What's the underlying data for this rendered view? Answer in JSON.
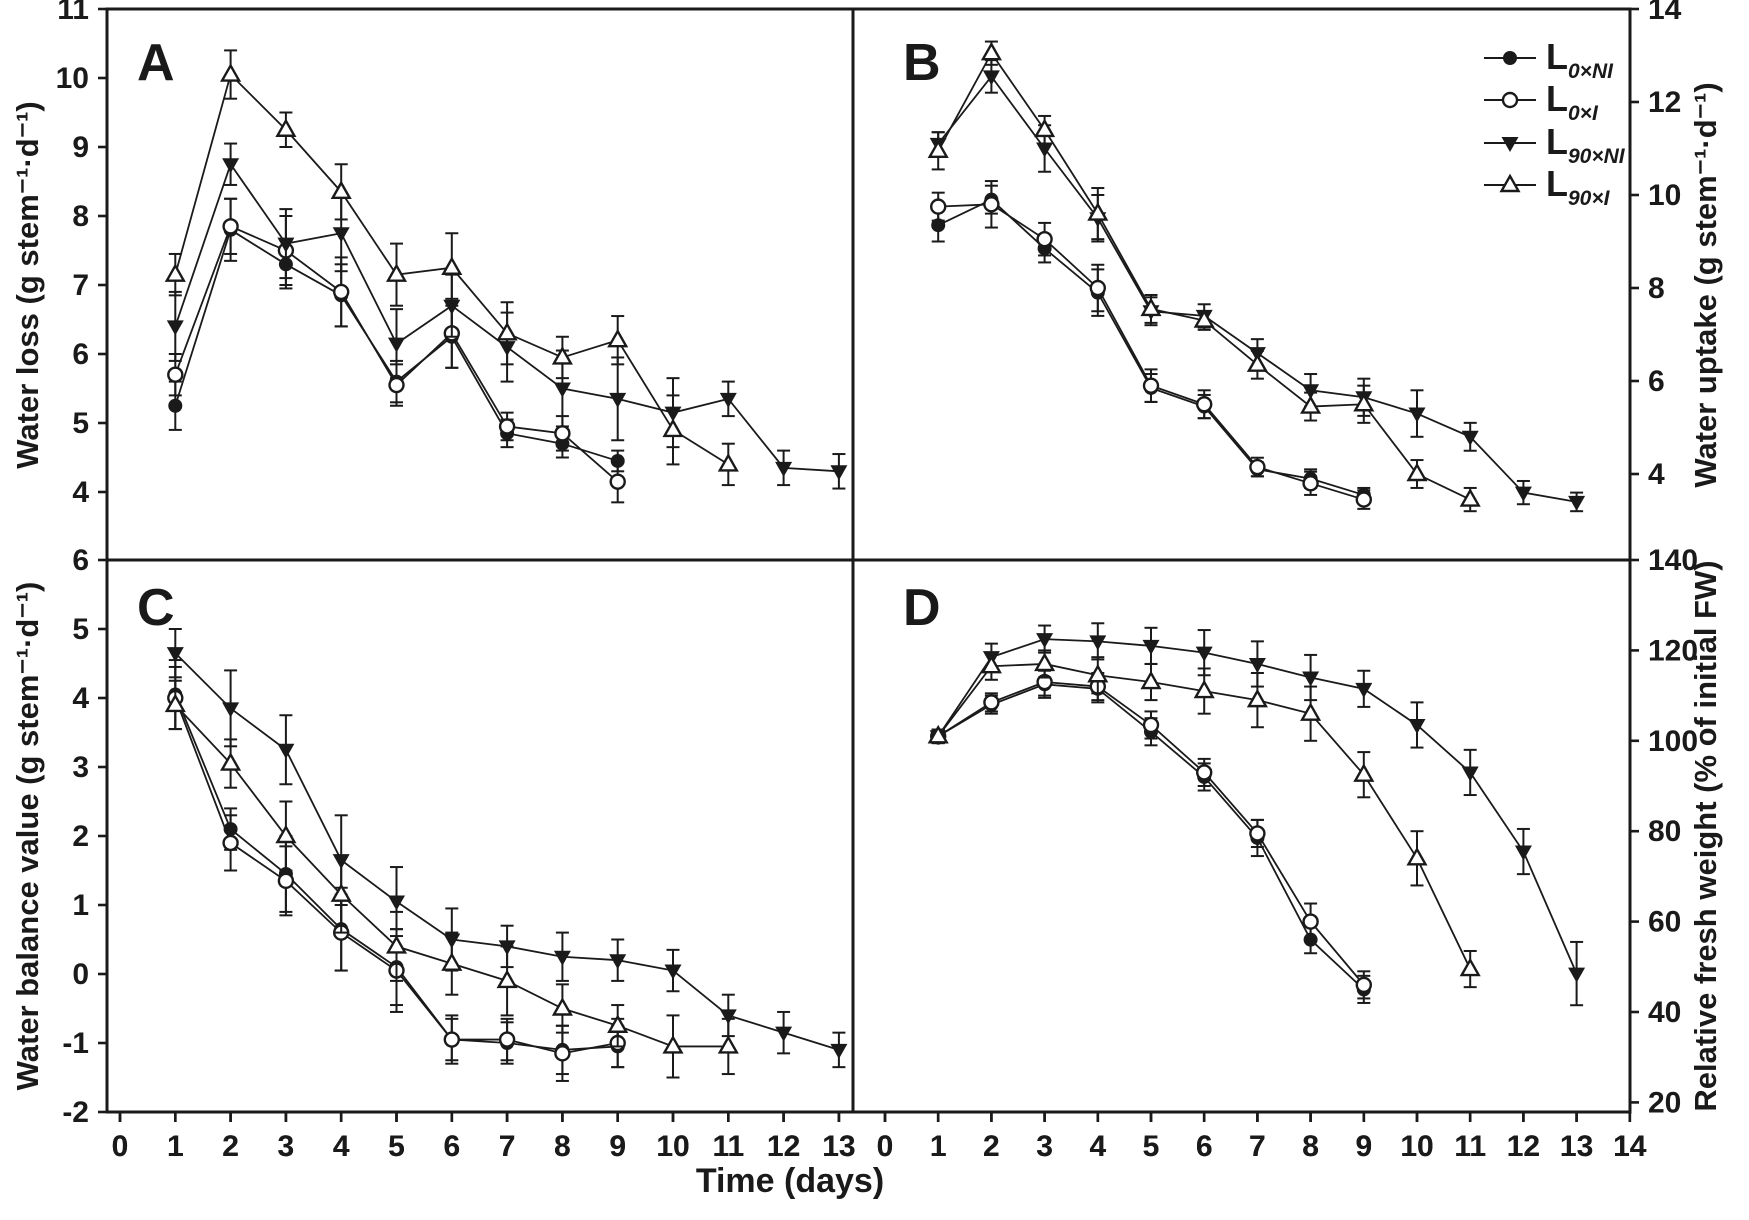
{
  "figure_type": "four-panel scientific line figure with error bars",
  "colors": {
    "line": "#1a1a1a",
    "background": "#ffffff"
  },
  "chart_data": {
    "type": "line",
    "xlabel": "Time (days)",
    "legend": {
      "position": "top-right of panel B",
      "items": [
        {
          "id": "L0xNI",
          "label_main": "L",
          "label_sub": "0×NI",
          "marker": "filled-circle"
        },
        {
          "id": "L0xI",
          "label_main": "L",
          "label_sub": "0×I",
          "marker": "open-circle"
        },
        {
          "id": "L90xNI",
          "label_main": "L",
          "label_sub": "90×NI",
          "marker": "filled-triangle-down"
        },
        {
          "id": "L90xI",
          "label_main": "L",
          "label_sub": "90×I",
          "marker": "open-triangle-up"
        }
      ]
    },
    "panels": [
      {
        "label": "A",
        "ylabel": "Water loss (g stem⁻¹·d⁻¹)",
        "axis_side": "left",
        "ylim": [
          3,
          11
        ],
        "yticks": [
          4,
          5,
          6,
          7,
          8,
          9,
          10,
          11
        ],
        "xlim": [
          0,
          13.3
        ],
        "xticks": [
          0,
          1,
          2,
          3,
          4,
          5,
          6,
          7,
          8,
          9,
          10,
          11,
          12,
          13
        ],
        "grid": false,
        "series": [
          {
            "id": "L0xNI",
            "marker": "filled-circle",
            "days": [
              1,
              2,
              3,
              4,
              5,
              6,
              7,
              8,
              9
            ],
            "values": [
              5.25,
              7.8,
              7.3,
              6.85,
              5.6,
              6.25,
              4.85,
              4.7,
              4.45
            ],
            "errors": [
              0.35,
              0.45,
              0.35,
              0.45,
              0.3,
              0.45,
              0.2,
              0.2,
              0.15
            ]
          },
          {
            "id": "L0xI",
            "marker": "open-circle",
            "days": [
              1,
              2,
              3,
              4,
              5,
              6,
              7,
              8,
              9
            ],
            "values": [
              5.7,
              7.85,
              7.5,
              6.9,
              5.55,
              6.3,
              4.95,
              4.85,
              4.15
            ],
            "errors": [
              0.3,
              0.4,
              0.5,
              0.5,
              0.3,
              0.5,
              0.2,
              0.25,
              0.3
            ]
          },
          {
            "id": "L90xNI",
            "marker": "filled-triangle-down",
            "days": [
              1,
              2,
              3,
              4,
              5,
              6,
              7,
              8,
              9,
              10,
              11,
              12,
              13
            ],
            "values": [
              6.4,
              8.75,
              7.6,
              7.75,
              6.15,
              6.7,
              6.1,
              5.5,
              5.35,
              5.15,
              5.35,
              4.35,
              4.3
            ],
            "errors": [
              0.5,
              0.3,
              0.5,
              0.55,
              0.5,
              0.45,
              0.5,
              0.55,
              0.6,
              0.5,
              0.25,
              0.25,
              0.25
            ]
          },
          {
            "id": "L90xI",
            "marker": "open-triangle-up",
            "days": [
              1,
              2,
              3,
              4,
              5,
              6,
              7,
              8,
              9,
              10,
              11
            ],
            "values": [
              7.15,
              10.05,
              9.25,
              8.35,
              7.15,
              7.25,
              6.3,
              5.95,
              6.2,
              4.9,
              4.4
            ],
            "errors": [
              0.3,
              0.35,
              0.25,
              0.4,
              0.45,
              0.5,
              0.45,
              0.3,
              0.35,
              0.5,
              0.3
            ]
          }
        ]
      },
      {
        "label": "B",
        "ylabel": "Water uptake (g stem⁻¹·d⁻¹)",
        "axis_side": "right",
        "ylim": [
          2.15,
          14
        ],
        "yticks": [
          4,
          6,
          8,
          10,
          12,
          14
        ],
        "xlim": [
          -0.6,
          14
        ],
        "xticks": [
          0,
          1,
          2,
          3,
          4,
          5,
          6,
          7,
          8,
          9,
          10,
          11,
          12,
          13,
          14
        ],
        "grid": false,
        "series": [
          {
            "id": "L0xNI",
            "marker": "filled-circle",
            "days": [
              1,
              2,
              3,
              4,
              5,
              6,
              7,
              8,
              9
            ],
            "values": [
              9.35,
              9.9,
              8.85,
              7.9,
              5.85,
              5.45,
              4.1,
              3.9,
              3.55
            ],
            "errors": [
              0.35,
              0.3,
              0.3,
              0.5,
              0.3,
              0.25,
              0.15,
              0.2,
              0.15
            ]
          },
          {
            "id": "L0xI",
            "marker": "open-circle",
            "days": [
              1,
              2,
              3,
              4,
              5,
              6,
              7,
              8,
              9
            ],
            "values": [
              9.75,
              9.8,
              9.05,
              8.0,
              5.9,
              5.5,
              4.15,
              3.8,
              3.45
            ],
            "errors": [
              0.3,
              0.5,
              0.35,
              0.5,
              0.35,
              0.3,
              0.2,
              0.25,
              0.2
            ]
          },
          {
            "id": "L90xNI",
            "marker": "filled-triangle-down",
            "days": [
              1,
              2,
              3,
              4,
              5,
              6,
              7,
              8,
              9,
              10,
              11,
              12,
              13
            ],
            "values": [
              11.1,
              12.55,
              11.0,
              9.5,
              7.5,
              7.4,
              6.6,
              5.8,
              5.65,
              5.3,
              4.8,
              3.6,
              3.4
            ],
            "errors": [
              0.25,
              0.35,
              0.5,
              0.5,
              0.3,
              0.25,
              0.3,
              0.35,
              0.4,
              0.5,
              0.3,
              0.25,
              0.2
            ]
          },
          {
            "id": "L90xI",
            "marker": "open-triangle-up",
            "days": [
              1,
              2,
              3,
              4,
              5,
              6,
              7,
              8,
              9,
              10,
              11
            ],
            "values": [
              10.95,
              13.05,
              11.4,
              9.6,
              7.55,
              7.3,
              6.35,
              5.45,
              5.5,
              4.0,
              3.45
            ],
            "errors": [
              0.4,
              0.25,
              0.3,
              0.55,
              0.3,
              0.2,
              0.3,
              0.3,
              0.4,
              0.3,
              0.25
            ]
          }
        ]
      },
      {
        "label": "C",
        "ylabel": "Water balance value (g stem⁻¹·d⁻¹)",
        "axis_side": "left",
        "ylim": [
          -2,
          6
        ],
        "yticks": [
          -2,
          -1,
          0,
          1,
          2,
          3,
          4,
          5,
          6
        ],
        "xlim": [
          0,
          13.3
        ],
        "xticks": [
          0,
          1,
          2,
          3,
          4,
          5,
          6,
          7,
          8,
          9,
          10,
          11,
          12,
          13
        ],
        "grid": false,
        "series": [
          {
            "id": "L0xNI",
            "marker": "filled-circle",
            "days": [
              1,
              2,
              3,
              4,
              5,
              6,
              7,
              8,
              9
            ],
            "values": [
              4.05,
              2.1,
              1.45,
              0.65,
              0.1,
              -0.95,
              -1.0,
              -1.1,
              -1.05
            ],
            "errors": [
              0.5,
              0.3,
              0.55,
              0.6,
              0.55,
              0.3,
              0.3,
              0.35,
              0.3
            ]
          },
          {
            "id": "L0xI",
            "marker": "open-circle",
            "days": [
              1,
              2,
              3,
              4,
              5,
              6,
              7,
              8,
              9
            ],
            "values": [
              4.0,
              1.9,
              1.35,
              0.6,
              0.05,
              -0.95,
              -0.95,
              -1.15,
              -1.0
            ],
            "errors": [
              0.45,
              0.4,
              0.5,
              0.55,
              0.6,
              0.35,
              0.3,
              0.4,
              0.35
            ]
          },
          {
            "id": "L90xNI",
            "marker": "filled-triangle-down",
            "days": [
              1,
              2,
              3,
              4,
              5,
              6,
              7,
              8,
              9,
              10,
              11,
              12,
              13
            ],
            "values": [
              4.65,
              3.85,
              3.25,
              1.65,
              1.05,
              0.5,
              0.4,
              0.25,
              0.2,
              0.05,
              -0.6,
              -0.85,
              -1.1
            ],
            "errors": [
              0.35,
              0.55,
              0.5,
              0.65,
              0.5,
              0.45,
              0.3,
              0.35,
              0.3,
              0.3,
              0.3,
              0.3,
              0.25
            ]
          },
          {
            "id": "L90xI",
            "marker": "open-triangle-up",
            "days": [
              1,
              2,
              3,
              4,
              5,
              6,
              7,
              8,
              9,
              10,
              11
            ],
            "values": [
              3.9,
              3.05,
              2.0,
              1.15,
              0.4,
              0.15,
              -0.1,
              -0.5,
              -0.75,
              -1.05,
              -1.05
            ],
            "errors": [
              0.35,
              0.35,
              0.5,
              0.55,
              0.5,
              0.45,
              0.5,
              0.35,
              0.3,
              0.45,
              0.4
            ]
          }
        ]
      },
      {
        "label": "D",
        "ylabel": "Relative fresh weight (% of initial FW)",
        "axis_side": "right",
        "ylim": [
          18,
          140.5
        ],
        "yticks": [
          20,
          40,
          60,
          80,
          100,
          120,
          140
        ],
        "xlim": [
          -0.6,
          14
        ],
        "xticks": [
          0,
          1,
          2,
          3,
          4,
          5,
          6,
          7,
          8,
          9,
          10,
          11,
          12,
          13,
          14
        ],
        "grid": false,
        "series": [
          {
            "id": "L0xNI",
            "marker": "filled-circle",
            "days": [
              1,
              2,
              3,
              4,
              5,
              6,
              7,
              8,
              9
            ],
            "values": [
              101,
              108,
              112.5,
              111.5,
              102,
              92,
              78.5,
              56,
              45
            ],
            "errors": [
              1.5,
              2,
              3,
              3,
              3,
              3,
              4,
              3,
              3
            ]
          },
          {
            "id": "L0xI",
            "marker": "open-circle",
            "days": [
              1,
              2,
              3,
              4,
              5,
              6,
              7,
              8,
              9
            ],
            "values": [
              101,
              108.5,
              113,
              112,
              103.5,
              93,
              79.5,
              60,
              46
            ],
            "errors": [
              1.5,
              2,
              3,
              3,
              3,
              3,
              3,
              4,
              3
            ]
          },
          {
            "id": "L90xNI",
            "marker": "filled-triangle-down",
            "days": [
              1,
              2,
              3,
              4,
              5,
              6,
              7,
              8,
              9,
              10,
              11,
              12,
              13
            ],
            "values": [
              101,
              118.5,
              122.5,
              122,
              121,
              119.5,
              117,
              114,
              111.5,
              103.5,
              93,
              75.5,
              48.5
            ],
            "errors": [
              1.5,
              3,
              3,
              4,
              4,
              5,
              5,
              5,
              4,
              5,
              5,
              5,
              7
            ]
          },
          {
            "id": "L90xI",
            "marker": "open-triangle-up",
            "days": [
              1,
              2,
              3,
              4,
              5,
              6,
              7,
              8,
              9,
              10,
              11
            ],
            "values": [
              101,
              116.5,
              117,
              114.5,
              113,
              111,
              109,
              106,
              92.5,
              74,
              49.5
            ],
            "errors": [
              1.5,
              3,
              3,
              4,
              4,
              5,
              6,
              6,
              5,
              6,
              4
            ]
          }
        ]
      }
    ]
  }
}
